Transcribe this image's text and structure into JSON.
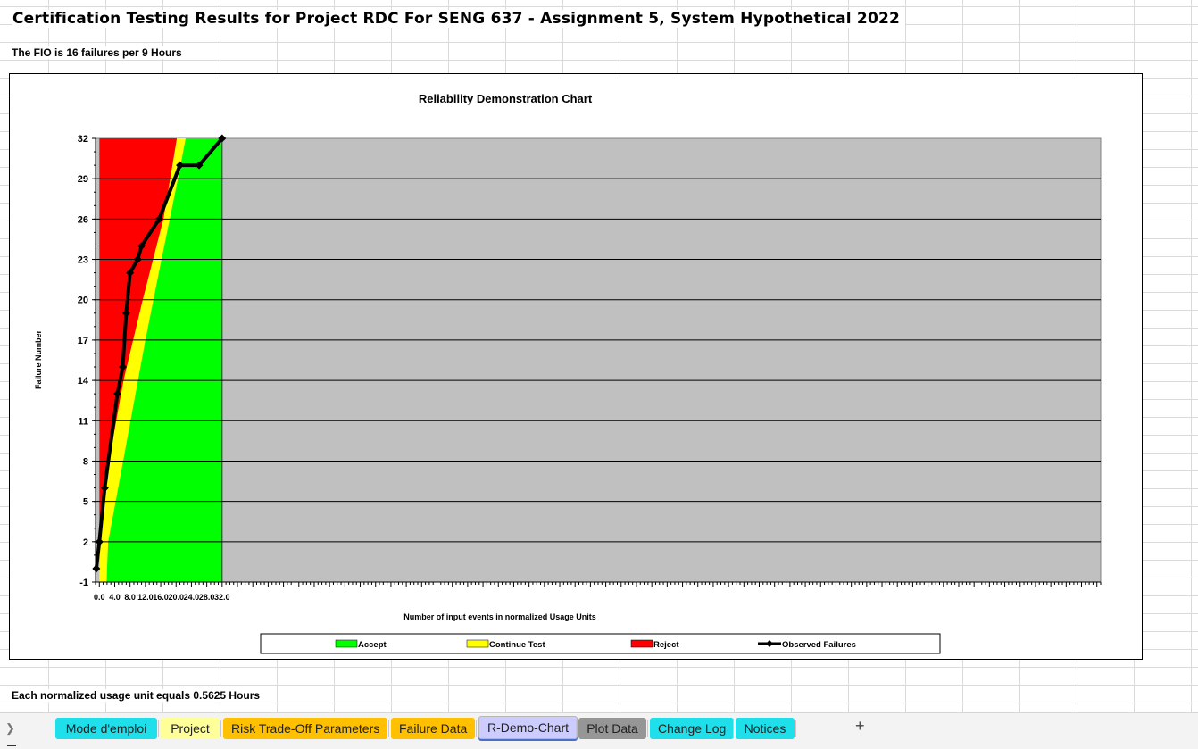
{
  "sheet": {
    "title": "Certification Testing Results for Project RDC For SENG 637 - Assignment 5, System Hypothetical 2022",
    "fio_text": "The FIO is 16 failures per 9 Hours",
    "footnote": "Each normalized usage unit equals 0.5625 Hours"
  },
  "chart_data": {
    "type": "area",
    "title": "Reliability Demonstration Chart",
    "xlabel": "Number of input events in normalized Usage Units",
    "ylabel": "Failure Number",
    "xlim": [
      -1,
      261
    ],
    "ylim": [
      -1,
      32
    ],
    "x_tick_labels": [
      "0.0",
      "4.0",
      "8.0",
      "12.0",
      "16.0",
      "20.0",
      "24.0",
      "28.0",
      "32.0"
    ],
    "y_ticks": [
      -1,
      2,
      5,
      8,
      11,
      14,
      17,
      20,
      23,
      26,
      29,
      32
    ],
    "grid": "horizontal",
    "plot_background": "#c0c0c0",
    "legend_position": "bottom",
    "regions": [
      {
        "name": "Accept",
        "color": "#00ff00",
        "x_end": 32,
        "boundary": [
          [
            1.9,
            -1
          ],
          [
            2.0,
            0
          ],
          [
            2.3,
            2
          ],
          [
            6.2,
            8
          ],
          [
            12,
            17
          ],
          [
            16.2,
            23
          ],
          [
            20.5,
            29
          ],
          [
            22.5,
            32
          ]
        ]
      },
      {
        "name": "Continue Test",
        "color": "#ffff00"
      },
      {
        "name": "Reject",
        "color": "#ff0000",
        "boundary": [
          [
            0,
            0
          ],
          [
            0.1,
            2
          ],
          [
            2.5,
            8
          ],
          [
            6.3,
            14
          ],
          [
            11.3,
            20
          ],
          [
            16.7,
            26
          ],
          [
            20.2,
            32
          ]
        ]
      }
    ],
    "series": [
      {
        "name": "Observed Failures",
        "color": "#000000",
        "x": [
          -0.8,
          0,
          1.4,
          4.7,
          6.1,
          7.0,
          8.0,
          10.0,
          11.0,
          15.6,
          21.0,
          26.0,
          32.0
        ],
        "y": [
          0,
          2,
          6,
          13,
          15,
          19,
          22,
          23,
          24,
          26,
          30,
          30,
          32
        ]
      }
    ]
  },
  "tabs": [
    {
      "label": "Mode d'emploi",
      "color": "#1fe0ea"
    },
    {
      "label": "Project",
      "color": "#ffff99"
    },
    {
      "label": "Risk Trade-Off Parameters",
      "color": "#ffc000"
    },
    {
      "label": "Failure Data",
      "color": "#ffc000"
    },
    {
      "label": "R-Demo-Chart",
      "color": "#ccccff"
    },
    {
      "label": "Plot Data",
      "color": "#969696"
    },
    {
      "label": "Change Log",
      "color": "#1fe0ea"
    },
    {
      "label": "Notices",
      "color": "#1fe0ea"
    }
  ],
  "active_tab": "R-Demo-Chart",
  "icons": {
    "nav": "chevron-right-icon",
    "add": "plus-icon"
  }
}
